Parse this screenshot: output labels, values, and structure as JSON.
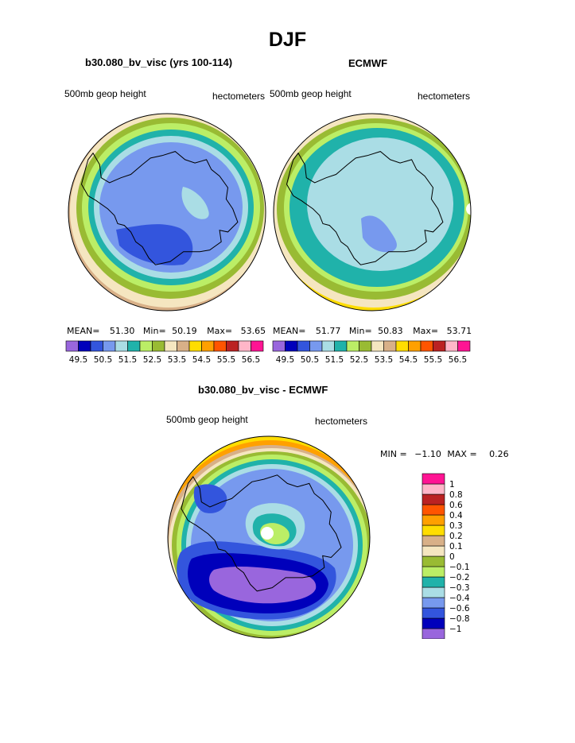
{
  "title": "DJF",
  "palette": {
    "abs": [
      "#9966dd",
      "#0000bb",
      "#3355dd",
      "#7799ee",
      "#aadde5",
      "#20b2aa",
      "#bbee66",
      "#99bb33",
      "#f5e6c0",
      "#d8b088",
      "#ffdd00",
      "#ffa000",
      "#ff5500",
      "#bb2222",
      "#ffb6c8",
      "#ff1493"
    ],
    "diff": [
      "#9966dd",
      "#0000bb",
      "#3355dd",
      "#7799ee",
      "#aadde5",
      "#20b2aa",
      "#bbee66",
      "#99bb33",
      "#f5e6c0",
      "#d8b088",
      "#ffdd00",
      "#ffa000",
      "#ff5500",
      "#bb2222",
      "#ffb6c8",
      "#ff1493"
    ]
  },
  "panels": {
    "model": {
      "title": "b30.080_bv_visc (yrs 100-114)",
      "left_label": "500mb geop height",
      "right_label": "hectometers",
      "mean_label": "MEAN=",
      "mean": "51.30",
      "min_label": "Min=",
      "min": "50.19",
      "max_label": "Max=",
      "max": "53.65"
    },
    "obs": {
      "title": "ECMWF",
      "left_label": "500mb geop height",
      "right_label": "hectometers",
      "mean_label": "MEAN=",
      "mean": "51.77",
      "min_label": "Min=",
      "min": "50.83",
      "max_label": "Max=",
      "max": "53.71"
    },
    "diff": {
      "title": "b30.080_bv_visc - ECMWF",
      "left_label": "500mb geop height",
      "right_label": "hectometers",
      "min_label": "MIN =",
      "min": "−1.10",
      "max_label": "MAX =",
      "max": "0.26"
    }
  },
  "chart_data": [
    {
      "type": "heatmap",
      "title": "b30.080_bv_visc (yrs 100-114)",
      "variable": "500mb geop height",
      "units": "hectometers",
      "projection": "south polar stereographic",
      "contour_levels": [
        "49.5",
        "50.5",
        "51.5",
        "52.5",
        "53.5",
        "54.5",
        "55.5",
        "56.5"
      ],
      "ring_values_outer_to_inner": [
        53.6,
        53.0,
        52.2,
        51.8,
        51.3,
        51.0,
        50.7
      ],
      "stats": {
        "mean": 51.3,
        "min": 50.19,
        "max": 53.65
      }
    },
    {
      "type": "heatmap",
      "title": "ECMWF",
      "variable": "500mb geop height",
      "units": "hectometers",
      "projection": "south polar stereographic",
      "contour_levels": [
        "49.5",
        "50.5",
        "51.5",
        "52.5",
        "53.5",
        "54.5",
        "55.5",
        "56.5"
      ],
      "ring_values_outer_to_inner": [
        54.6,
        53.8,
        53.2,
        52.8,
        52.2,
        51.8,
        51.3,
        50.9
      ],
      "stats": {
        "mean": 51.77,
        "min": 50.83,
        "max": 53.71
      }
    },
    {
      "type": "heatmap",
      "title": "b30.080_bv_visc - ECMWF",
      "variable": "500mb geop height",
      "units": "hectometers",
      "projection": "south polar stereographic",
      "contour_levels": [
        "−1",
        "−0.8",
        "−0.6",
        "−0.4",
        "−0.3",
        "−0.2",
        "−0.1",
        "0",
        "0.1",
        "0.2",
        "0.3",
        "0.4",
        "0.6",
        "0.8",
        "1"
      ],
      "ring_values_outer_to_inner": [
        0.35,
        0.15,
        0.05,
        -0.15,
        -0.35,
        -0.5,
        -0.7,
        -0.5,
        -0.35,
        -0.15
      ],
      "stats": {
        "min": -1.1,
        "max": 0.26
      }
    }
  ]
}
